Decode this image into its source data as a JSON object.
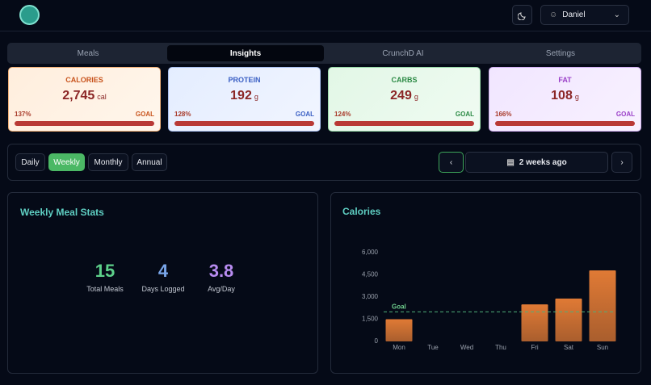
{
  "header": {
    "user": "Daniel"
  },
  "tabs": [
    "Meals",
    "Insights",
    "CrunchD AI",
    "Settings"
  ],
  "macros": [
    {
      "name": "CALORIES",
      "value": "2,745",
      "unit": "cal",
      "percent": "137%",
      "goal": "GOAL"
    },
    {
      "name": "PROTEIN",
      "value": "192",
      "unit": "g",
      "percent": "128%",
      "goal": "GOAL"
    },
    {
      "name": "CARBS",
      "value": "249",
      "unit": "g",
      "percent": "124%",
      "goal": "GOAL"
    },
    {
      "name": "FAT",
      "value": "108",
      "unit": "g",
      "percent": "166%",
      "goal": "GOAL"
    }
  ],
  "periods": [
    "Daily",
    "Weekly",
    "Monthly",
    "Annual"
  ],
  "range_label": "2 weeks ago",
  "stats": {
    "title": "Weekly Meal Stats",
    "items": [
      {
        "value": "15",
        "label": "Total Meals"
      },
      {
        "value": "4",
        "label": "Days Logged"
      },
      {
        "value": "3.8",
        "label": "Avg/Day"
      }
    ]
  },
  "chart_data": {
    "type": "bar",
    "title": "Calories",
    "categories": [
      "Mon",
      "Tue",
      "Wed",
      "Thu",
      "Fri",
      "Sat",
      "Sun"
    ],
    "values": [
      1500,
      null,
      null,
      null,
      2500,
      2900,
      4800
    ],
    "color": "#e07a35",
    "ylim": [
      0,
      6000
    ],
    "yticks": [
      0,
      {
        "value": 1500,
        "label": "1,500"
      },
      {
        "value": 3000,
        "label": "3,000"
      },
      {
        "value": 4500,
        "label": "4,500"
      },
      {
        "value": 6000,
        "label": "6,000"
      }
    ],
    "grid": false,
    "goal": {
      "label": "Goal",
      "value": 2000
    }
  }
}
